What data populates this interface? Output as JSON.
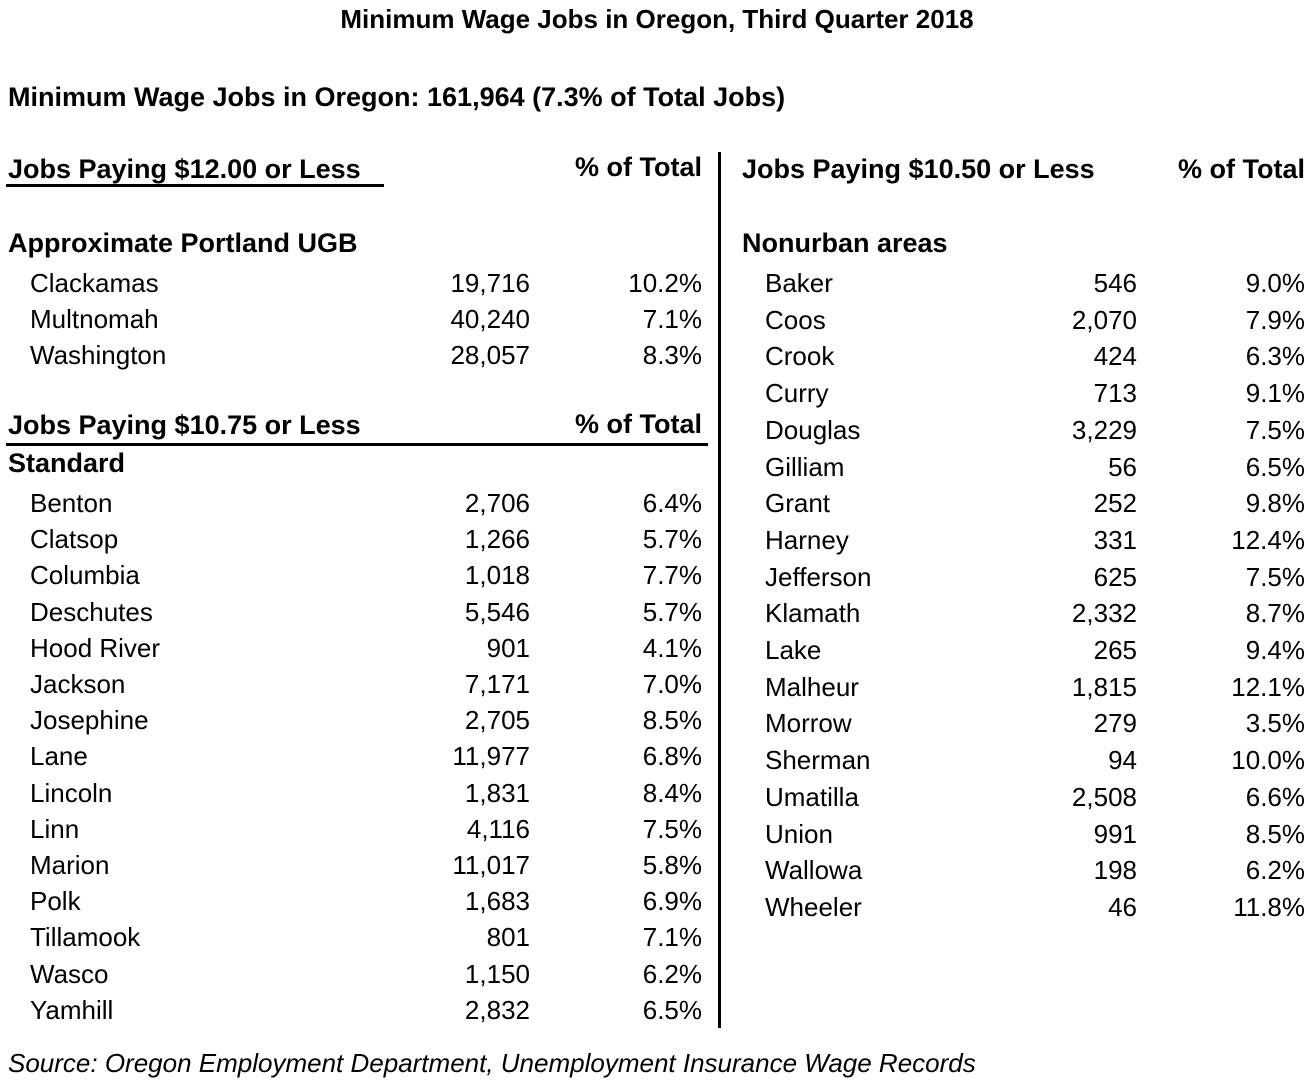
{
  "title": "Minimum Wage Jobs in Oregon, Third Quarter 2018",
  "summary": "Minimum Wage Jobs in Oregon: 161,964 (7.3% of Total Jobs)",
  "left": {
    "section1": {
      "header": "Jobs Paying $12.00 or Less",
      "pct_header": "% of Total",
      "group": "Approximate Portland UGB",
      "rows": [
        {
          "name": "Clackamas",
          "jobs": "19,716",
          "pct": "10.2%"
        },
        {
          "name": "Multnomah",
          "jobs": "40,240",
          "pct": "7.1%"
        },
        {
          "name": "Washington",
          "jobs": "28,057",
          "pct": "8.3%"
        }
      ]
    },
    "section2": {
      "header": "Jobs Paying $10.75 or Less",
      "pct_header": "% of Total",
      "group": "Standard",
      "rows": [
        {
          "name": "Benton",
          "jobs": "2,706",
          "pct": "6.4%"
        },
        {
          "name": "Clatsop",
          "jobs": "1,266",
          "pct": "5.7%"
        },
        {
          "name": "Columbia",
          "jobs": "1,018",
          "pct": "7.7%"
        },
        {
          "name": "Deschutes",
          "jobs": "5,546",
          "pct": "5.7%"
        },
        {
          "name": "Hood River",
          "jobs": "901",
          "pct": "4.1%"
        },
        {
          "name": "Jackson",
          "jobs": "7,171",
          "pct": "7.0%"
        },
        {
          "name": "Josephine",
          "jobs": "2,705",
          "pct": "8.5%"
        },
        {
          "name": "Lane",
          "jobs": "11,977",
          "pct": "6.8%"
        },
        {
          "name": "Lincoln",
          "jobs": "1,831",
          "pct": "8.4%"
        },
        {
          "name": "Linn",
          "jobs": "4,116",
          "pct": "7.5%"
        },
        {
          "name": "Marion",
          "jobs": "11,017",
          "pct": "5.8%"
        },
        {
          "name": "Polk",
          "jobs": "1,683",
          "pct": "6.9%"
        },
        {
          "name": "Tillamook",
          "jobs": "801",
          "pct": "7.1%"
        },
        {
          "name": "Wasco",
          "jobs": "1,150",
          "pct": "6.2%"
        },
        {
          "name": "Yamhill",
          "jobs": "2,832",
          "pct": "6.5%"
        }
      ]
    }
  },
  "right": {
    "header": "Jobs Paying $10.50 or Less",
    "pct_header": "% of Total",
    "group": "Nonurban areas",
    "rows": [
      {
        "name": "Baker",
        "jobs": "546",
        "pct": "9.0%"
      },
      {
        "name": "Coos",
        "jobs": "2,070",
        "pct": "7.9%"
      },
      {
        "name": "Crook",
        "jobs": "424",
        "pct": "6.3%"
      },
      {
        "name": "Curry",
        "jobs": "713",
        "pct": "9.1%"
      },
      {
        "name": "Douglas",
        "jobs": "3,229",
        "pct": "7.5%"
      },
      {
        "name": "Gilliam",
        "jobs": "56",
        "pct": "6.5%"
      },
      {
        "name": "Grant",
        "jobs": "252",
        "pct": "9.8%"
      },
      {
        "name": "Harney",
        "jobs": "331",
        "pct": "12.4%"
      },
      {
        "name": "Jefferson",
        "jobs": "625",
        "pct": "7.5%"
      },
      {
        "name": "Klamath",
        "jobs": "2,332",
        "pct": "8.7%"
      },
      {
        "name": "Lake",
        "jobs": "265",
        "pct": "9.4%"
      },
      {
        "name": "Malheur",
        "jobs": "1,815",
        "pct": "12.1%"
      },
      {
        "name": "Morrow",
        "jobs": "279",
        "pct": "3.5%"
      },
      {
        "name": "Sherman",
        "jobs": "94",
        "pct": "10.0%"
      },
      {
        "name": "Umatilla",
        "jobs": "2,508",
        "pct": "6.6%"
      },
      {
        "name": "Union",
        "jobs": "991",
        "pct": "8.5%"
      },
      {
        "name": "Wallowa",
        "jobs": "198",
        "pct": "6.2%"
      },
      {
        "name": "Wheeler",
        "jobs": "46",
        "pct": "11.8%"
      }
    ]
  },
  "source": "Source: Oregon Employment Department, Unemployment Insurance Wage Records"
}
